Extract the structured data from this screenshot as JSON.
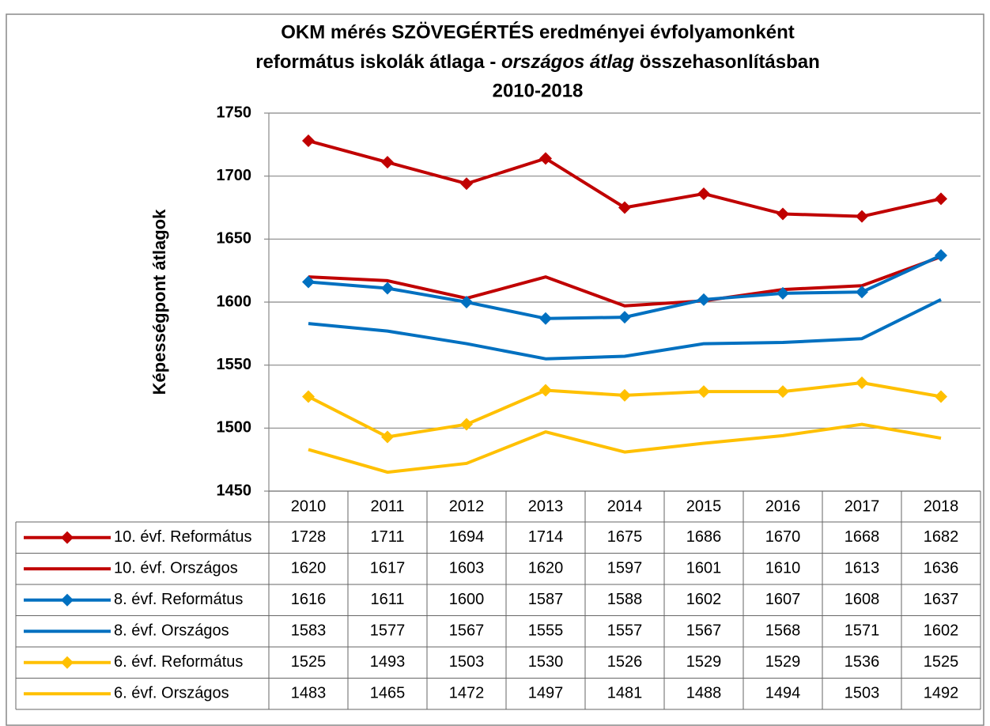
{
  "chart_data": {
    "type": "line",
    "title": [
      "OKM mérés SZÖVEGÉRTÉS eredményei évfolyamonként",
      [
        "református iskolák átlaga - ",
        "országos átlag",
        " összehasonlításban"
      ],
      "2010-2018"
    ],
    "ylabel": "Képességpont átlagok",
    "categories": [
      "2010",
      "2011",
      "2012",
      "2013",
      "2014",
      "2015",
      "2016",
      "2017",
      "2018"
    ],
    "ylim": [
      1450,
      1750
    ],
    "yticks": [
      1450,
      1500,
      1550,
      1600,
      1650,
      1700,
      1750
    ],
    "grid": true,
    "series": [
      {
        "name": "10. évf. Református",
        "color": "#c00000",
        "marker": "diamond",
        "values": [
          1728,
          1711,
          1694,
          1714,
          1675,
          1686,
          1670,
          1668,
          1682
        ]
      },
      {
        "name": "10. évf. Országos",
        "color": "#c00000",
        "marker": null,
        "values": [
          1620,
          1617,
          1603,
          1620,
          1597,
          1601,
          1610,
          1613,
          1636
        ]
      },
      {
        "name": "8. évf. Református",
        "color": "#0070c0",
        "marker": "diamond",
        "values": [
          1616,
          1611,
          1600,
          1587,
          1588,
          1602,
          1607,
          1608,
          1637
        ]
      },
      {
        "name": "8. évf. Országos",
        "color": "#0070c0",
        "marker": null,
        "values": [
          1583,
          1577,
          1567,
          1555,
          1557,
          1567,
          1568,
          1571,
          1602
        ]
      },
      {
        "name": "6. évf. Református",
        "color": "#ffc000",
        "marker": "diamond",
        "values": [
          1525,
          1493,
          1503,
          1530,
          1526,
          1529,
          1529,
          1536,
          1525
        ]
      },
      {
        "name": "6. évf. Országos",
        "color": "#ffc000",
        "marker": null,
        "values": [
          1483,
          1465,
          1472,
          1497,
          1481,
          1488,
          1494,
          1503,
          1492
        ]
      }
    ]
  }
}
